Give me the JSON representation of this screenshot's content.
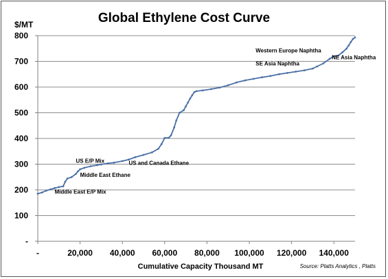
{
  "chart_data": {
    "type": "line",
    "title": "Global Ethylene Cost Curve",
    "ylabel": "$/MT",
    "xlabel": "Cumulative Capacity Thousand MT",
    "source": "Source: Platts Analytics , Platts",
    "xlim": [
      0,
      150000
    ],
    "ylim": [
      0,
      800
    ],
    "x_ticks": [
      0,
      20000,
      40000,
      60000,
      80000,
      100000,
      120000,
      140000
    ],
    "x_tick_labels": [
      "-",
      "20,000",
      "40,000",
      "60,000",
      "80,000",
      "100,000",
      "120,000",
      "140,000"
    ],
    "y_ticks": [
      0,
      100,
      200,
      300,
      400,
      500,
      600,
      700,
      800
    ],
    "y_tick_labels": [
      "-",
      "100",
      "200",
      "300",
      "400",
      "500",
      "600",
      "700",
      "800"
    ],
    "grid": true,
    "series_color": "#4a6fa5",
    "series": [
      {
        "x": [
          0,
          2000,
          4000,
          6000,
          8000,
          10000,
          12000,
          13000,
          14000,
          16000,
          18000,
          19000,
          20000,
          22000,
          25000,
          28000,
          30000,
          33000,
          36000,
          40000,
          43000,
          46000,
          50000,
          54000,
          57000,
          58500,
          60000,
          62000,
          63000,
          64500,
          65500,
          67000,
          69000,
          70000,
          71000,
          72000,
          73000,
          74000,
          75000,
          78000,
          82000,
          86000,
          90000,
          94000,
          98000,
          102000,
          106000,
          110000,
          114000,
          118000,
          122000,
          126000,
          130000,
          132000,
          135000,
          138000,
          140000,
          142000,
          144000,
          146000,
          147000,
          148000,
          149000,
          150000
        ],
        "y": [
          185,
          190,
          197,
          202,
          207,
          211,
          214,
          232,
          244,
          250,
          262,
          272,
          280,
          286,
          292,
          296,
          299,
          303,
          306,
          312,
          318,
          327,
          336,
          346,
          360,
          378,
          402,
          403,
          412,
          443,
          470,
          500,
          510,
          525,
          540,
          555,
          568,
          580,
          584,
          587,
          592,
          598,
          607,
          618,
          626,
          632,
          638,
          643,
          650,
          655,
          660,
          665,
          672,
          680,
          692,
          710,
          720,
          722,
          735,
          750,
          762,
          775,
          787,
          793
        ]
      }
    ],
    "annotations": [
      {
        "text": "Middle East E/P Mix",
        "x": 8000,
        "y": 185
      },
      {
        "text": "Middle East Ethane",
        "x": 20000,
        "y": 251
      },
      {
        "text": "US E/P Mix",
        "x": 18000,
        "y": 305
      },
      {
        "text": "US and Canada Ethane",
        "x": 43000,
        "y": 298
      },
      {
        "text": "SE Asia Naphtha",
        "x": 103000,
        "y": 684
      },
      {
        "text": "Western Europe Naphtha",
        "x": 103000,
        "y": 735
      },
      {
        "text": "NE Asia Naphtha",
        "x": 139000,
        "y": 708
      }
    ]
  }
}
